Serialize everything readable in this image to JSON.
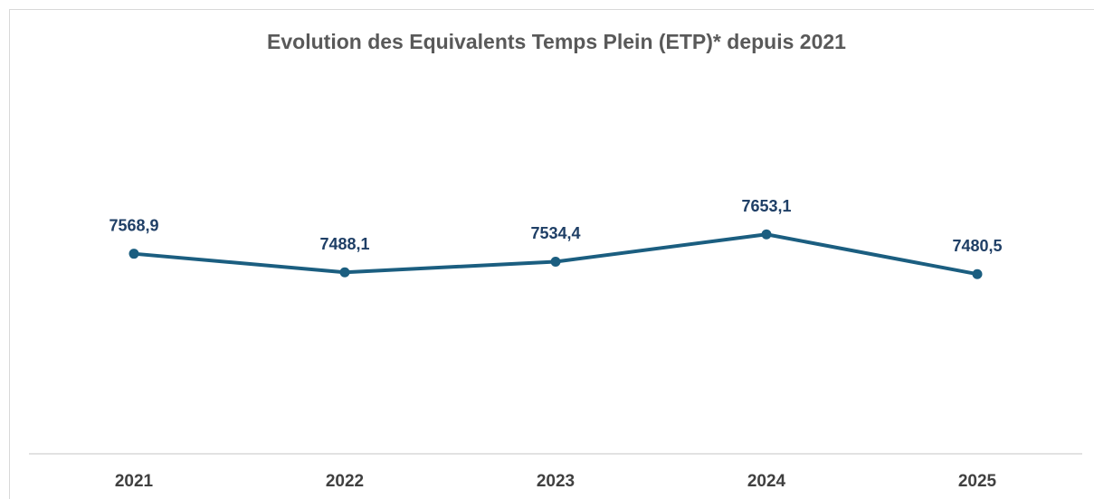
{
  "chart_data": {
    "type": "line",
    "title": "Evolution des Equivalents Temps Plein (ETP)* depuis 2021",
    "categories": [
      "2021",
      "2022",
      "2023",
      "2024",
      "2025"
    ],
    "series": [
      {
        "name": "ETP",
        "color": "#1b5e80",
        "values": [
          7568.9,
          7488.1,
          7534.4,
          7653.1,
          7480.5
        ],
        "value_labels": [
          "7568,9",
          "7488,1",
          "7534,4",
          "7653,1",
          "7480,5"
        ]
      }
    ],
    "ylim": [
      6700,
      8400
    ]
  }
}
